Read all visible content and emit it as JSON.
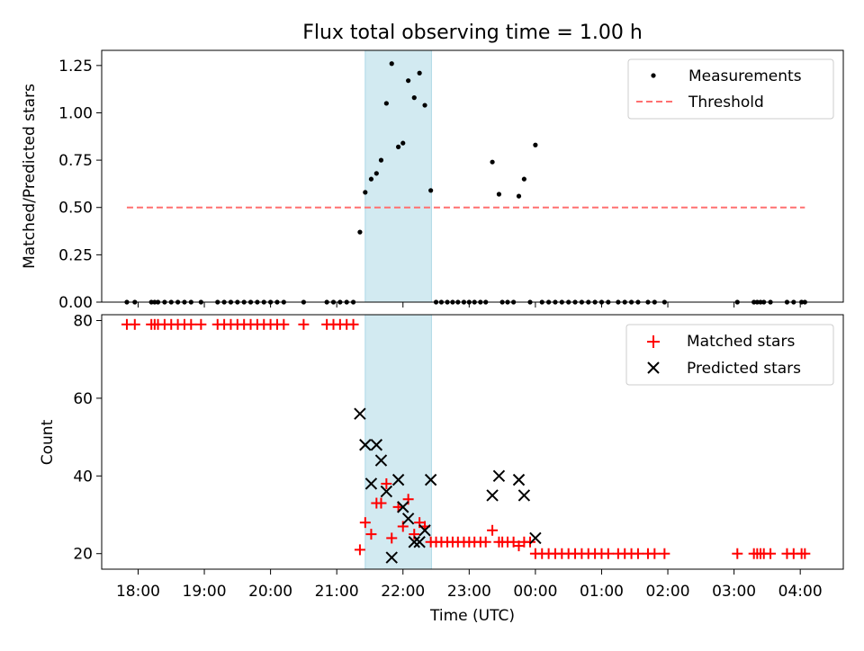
{
  "chart_data": [
    {
      "type": "scatter",
      "title": "Flux total observing time = 1.00 h",
      "xlabel": "",
      "ylabel": "Matched/Predicted stars",
      "ylim": [
        0,
        1.33
      ],
      "xlim_hours": [
        17.45,
        28.65
      ],
      "yticks": [
        0,
        0.25,
        0.5,
        0.75,
        1.0,
        1.25
      ],
      "ytick_labels": [
        "0.00",
        "0.25",
        "0.50",
        "0.75",
        "1.00",
        "1.25"
      ],
      "highlight_span_hours": [
        21.43,
        22.43
      ],
      "highlight_color": "#add8e6",
      "legend_position": "upper right",
      "series": [
        {
          "name": "Measurements",
          "kind": "points",
          "color": "#000000",
          "x": [
            17.83,
            17.95,
            18.2,
            18.25,
            18.3,
            18.4,
            18.5,
            18.6,
            18.7,
            18.8,
            18.95,
            19.2,
            19.3,
            19.4,
            19.5,
            19.6,
            19.7,
            19.8,
            19.9,
            20.0,
            20.1,
            20.2,
            20.5,
            20.85,
            20.95,
            21.05,
            21.15,
            21.25,
            21.35,
            21.43,
            21.52,
            21.6,
            21.67,
            21.75,
            21.83,
            21.93,
            22.0,
            22.08,
            22.17,
            22.25,
            22.33,
            22.42,
            22.5,
            22.58,
            22.67,
            22.75,
            22.83,
            22.92,
            23.0,
            23.08,
            23.17,
            23.25,
            23.35,
            23.45,
            23.5,
            23.58,
            23.67,
            23.75,
            23.83,
            23.92,
            24.0,
            24.1,
            24.2,
            24.3,
            24.4,
            24.5,
            24.6,
            24.7,
            24.8,
            24.9,
            25.0,
            25.1,
            25.25,
            25.35,
            25.45,
            25.55,
            25.7,
            25.8,
            25.95,
            27.05,
            27.3,
            27.35,
            27.4,
            27.45,
            27.55,
            27.8,
            27.9,
            28.02,
            28.07
          ],
          "y": [
            0,
            0,
            0,
            0,
            0,
            0,
            0,
            0,
            0,
            0,
            0,
            0,
            0,
            0,
            0,
            0,
            0,
            0,
            0,
            0,
            0,
            0,
            0,
            0,
            0,
            0,
            0,
            0,
            0.37,
            0.58,
            0.65,
            0.68,
            0.75,
            1.05,
            1.26,
            0.82,
            0.84,
            1.17,
            1.08,
            1.21,
            1.04,
            0.59,
            0,
            0,
            0,
            0,
            0,
            0,
            0,
            0,
            0,
            0,
            0.74,
            0.57,
            0,
            0,
            0,
            0.56,
            0.65,
            0,
            0.83,
            0,
            0,
            0,
            0,
            0,
            0,
            0,
            0,
            0,
            0,
            0,
            0,
            0,
            0,
            0,
            0,
            0,
            0,
            0,
            0,
            0,
            0,
            0,
            0,
            0,
            0,
            0,
            0
          ]
        },
        {
          "name": "Threshold",
          "kind": "dashed-line",
          "color": "#ff7070",
          "x": [
            17.83,
            28.07
          ],
          "y": [
            0.5,
            0.5
          ]
        }
      ]
    },
    {
      "type": "scatter",
      "title": "",
      "xlabel": "Time (UTC)",
      "ylabel": "Count",
      "ylim": [
        16,
        81.5
      ],
      "xlim_hours": [
        17.45,
        28.65
      ],
      "yticks": [
        20,
        40,
        60,
        80
      ],
      "ytick_labels": [
        "20",
        "40",
        "60",
        "80"
      ],
      "xticks": [
        18,
        19,
        20,
        21,
        22,
        23,
        24,
        25,
        26,
        27,
        28
      ],
      "xtick_labels": [
        "18:00",
        "19:00",
        "20:00",
        "21:00",
        "22:00",
        "23:00",
        "00:00",
        "01:00",
        "02:00",
        "03:00",
        "04:00"
      ],
      "highlight_span_hours": [
        21.43,
        22.43
      ],
      "highlight_color": "#add8e6",
      "legend_position": "upper right",
      "series": [
        {
          "name": "Matched stars",
          "marker": "plus",
          "color": "#ff0000",
          "x": [
            17.83,
            17.95,
            18.2,
            18.25,
            18.3,
            18.4,
            18.5,
            18.6,
            18.7,
            18.8,
            18.95,
            19.2,
            19.3,
            19.4,
            19.5,
            19.6,
            19.7,
            19.8,
            19.9,
            20.0,
            20.1,
            20.2,
            20.5,
            20.85,
            20.95,
            21.05,
            21.15,
            21.25,
            21.35,
            21.43,
            21.52,
            21.6,
            21.67,
            21.75,
            21.83,
            21.93,
            22.0,
            22.08,
            22.17,
            22.25,
            22.33,
            22.42,
            22.5,
            22.58,
            22.67,
            22.75,
            22.83,
            22.92,
            23.0,
            23.08,
            23.17,
            23.25,
            23.35,
            23.45,
            23.5,
            23.58,
            23.67,
            23.75,
            23.83,
            23.92,
            24.0,
            24.1,
            24.2,
            24.3,
            24.4,
            24.5,
            24.6,
            24.7,
            24.8,
            24.9,
            25.0,
            25.1,
            25.25,
            25.35,
            25.45,
            25.55,
            25.7,
            25.8,
            25.95,
            27.05,
            27.3,
            27.35,
            27.4,
            27.45,
            27.55,
            27.8,
            27.9,
            28.02,
            28.07
          ],
          "y": [
            79,
            79,
            79,
            79,
            79,
            79,
            79,
            79,
            79,
            79,
            79,
            79,
            79,
            79,
            79,
            79,
            79,
            79,
            79,
            79,
            79,
            79,
            79,
            79,
            79,
            79,
            79,
            79,
            21,
            28,
            25,
            33,
            33,
            38,
            24,
            32,
            27,
            34,
            25,
            28,
            27,
            23,
            23,
            23,
            23,
            23,
            23,
            23,
            23,
            23,
            23,
            23,
            26,
            23,
            23,
            23,
            23,
            22,
            23,
            23,
            20,
            20,
            20,
            20,
            20,
            20,
            20,
            20,
            20,
            20,
            20,
            20,
            20,
            20,
            20,
            20,
            20,
            20,
            20,
            20,
            20,
            20,
            20,
            20,
            20,
            20,
            20,
            20,
            20
          ]
        },
        {
          "name": "Predicted stars",
          "marker": "x",
          "color": "#000000",
          "x": [
            21.35,
            21.43,
            21.52,
            21.6,
            21.67,
            21.75,
            21.83,
            21.93,
            22.0,
            22.08,
            22.17,
            22.25,
            22.33,
            22.42,
            23.35,
            23.45,
            23.75,
            23.83,
            24.0
          ],
          "y": [
            56,
            48,
            38,
            48,
            44,
            36,
            19,
            39,
            32,
            29,
            23,
            23,
            26,
            39,
            35,
            40,
            39,
            35,
            24
          ]
        }
      ]
    }
  ]
}
